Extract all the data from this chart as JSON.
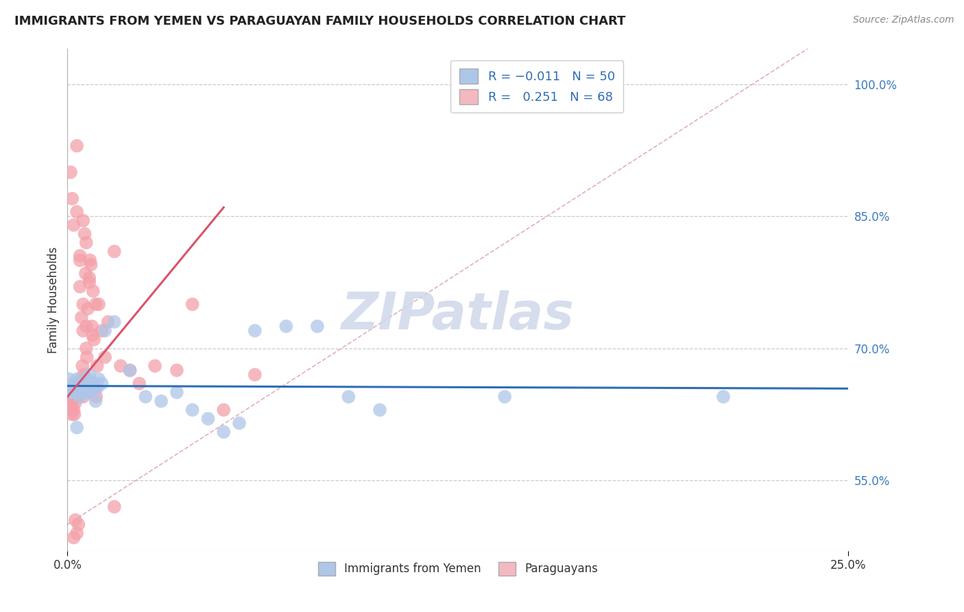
{
  "title": "IMMIGRANTS FROM YEMEN VS PARAGUAYAN FAMILY HOUSEHOLDS CORRELATION CHART",
  "source_text": "Source: ZipAtlas.com",
  "ylabel": "Family Households",
  "ytick_values": [
    55.0,
    70.0,
    85.0,
    100.0
  ],
  "xmin": 0.0,
  "xmax": 25.0,
  "ymin": 47.0,
  "ymax": 104.0,
  "legend_blue_label": "R = -0.011   N = 50",
  "legend_pink_label": "R =  0.251   N = 68",
  "legend_blue_color": "#aec6e8",
  "legend_pink_color": "#f4b8c1",
  "scatter_blue_color": "#aec6e8",
  "scatter_pink_color": "#f4a0aa",
  "trend_blue_color": "#2e6db4",
  "trend_pink_color": "#d9536a",
  "diagonal_color": "#e0b0b8",
  "watermark_color": "#cfd8ea",
  "watermark_text": "ZIPatlas",
  "blue_scatter_x": [
    0.05,
    0.1,
    0.12,
    0.15,
    0.18,
    0.2,
    0.22,
    0.25,
    0.28,
    0.3,
    0.32,
    0.35,
    0.38,
    0.4,
    0.42,
    0.45,
    0.48,
    0.5,
    0.55,
    0.6,
    0.65,
    0.7,
    0.75,
    0.8,
    0.85,
    0.9,
    0.95,
    1.0,
    1.1,
    1.2,
    1.5,
    2.0,
    2.5,
    3.0,
    3.5,
    4.0,
    4.5,
    5.0,
    5.5,
    6.0,
    7.0,
    8.0,
    9.0,
    10.0,
    14.0,
    21.0,
    0.3,
    0.5,
    0.7,
    0.9
  ],
  "blue_scatter_y": [
    66.5,
    65.5,
    65.0,
    65.0,
    65.5,
    66.0,
    65.0,
    66.0,
    65.5,
    66.5,
    65.0,
    66.0,
    65.5,
    64.5,
    65.0,
    66.0,
    65.5,
    65.0,
    66.0,
    65.0,
    66.5,
    67.0,
    65.5,
    66.0,
    65.5,
    66.0,
    65.5,
    66.5,
    66.0,
    72.0,
    73.0,
    67.5,
    64.5,
    64.0,
    65.0,
    63.0,
    62.0,
    60.5,
    61.5,
    72.0,
    72.5,
    72.5,
    64.5,
    63.0,
    64.5,
    64.5,
    61.0,
    65.5,
    65.0,
    64.0
  ],
  "pink_scatter_x": [
    0.05,
    0.08,
    0.1,
    0.12,
    0.15,
    0.18,
    0.2,
    0.22,
    0.25,
    0.28,
    0.3,
    0.32,
    0.35,
    0.38,
    0.4,
    0.42,
    0.45,
    0.48,
    0.5,
    0.52,
    0.55,
    0.58,
    0.6,
    0.62,
    0.65,
    0.68,
    0.7,
    0.72,
    0.75,
    0.78,
    0.8,
    0.82,
    0.85,
    0.88,
    0.9,
    0.92,
    0.95,
    1.0,
    1.1,
    1.2,
    1.3,
    1.5,
    1.7,
    2.0,
    2.3,
    2.8,
    3.5,
    4.0,
    5.0,
    6.0,
    0.1,
    0.15,
    0.2,
    0.3,
    0.4,
    0.5,
    0.6,
    0.7,
    0.5,
    0.6,
    0.3,
    0.4,
    0.5,
    1.5,
    0.2,
    0.25,
    0.3,
    0.35
  ],
  "pink_scatter_y": [
    64.5,
    65.0,
    64.0,
    63.5,
    62.5,
    64.0,
    63.0,
    62.5,
    63.8,
    64.5,
    65.0,
    65.5,
    66.0,
    65.0,
    77.0,
    66.5,
    73.5,
    68.0,
    72.0,
    67.0,
    83.0,
    78.5,
    72.5,
    69.0,
    74.5,
    65.5,
    77.5,
    80.0,
    79.5,
    72.5,
    71.5,
    76.5,
    71.0,
    65.5,
    75.0,
    64.5,
    68.0,
    75.0,
    72.0,
    69.0,
    73.0,
    81.0,
    68.0,
    67.5,
    66.0,
    68.0,
    67.5,
    75.0,
    63.0,
    67.0,
    90.0,
    87.0,
    84.0,
    93.0,
    80.0,
    75.0,
    82.0,
    78.0,
    84.5,
    70.0,
    85.5,
    80.5,
    64.5,
    52.0,
    48.5,
    50.5,
    49.0,
    50.0
  ]
}
